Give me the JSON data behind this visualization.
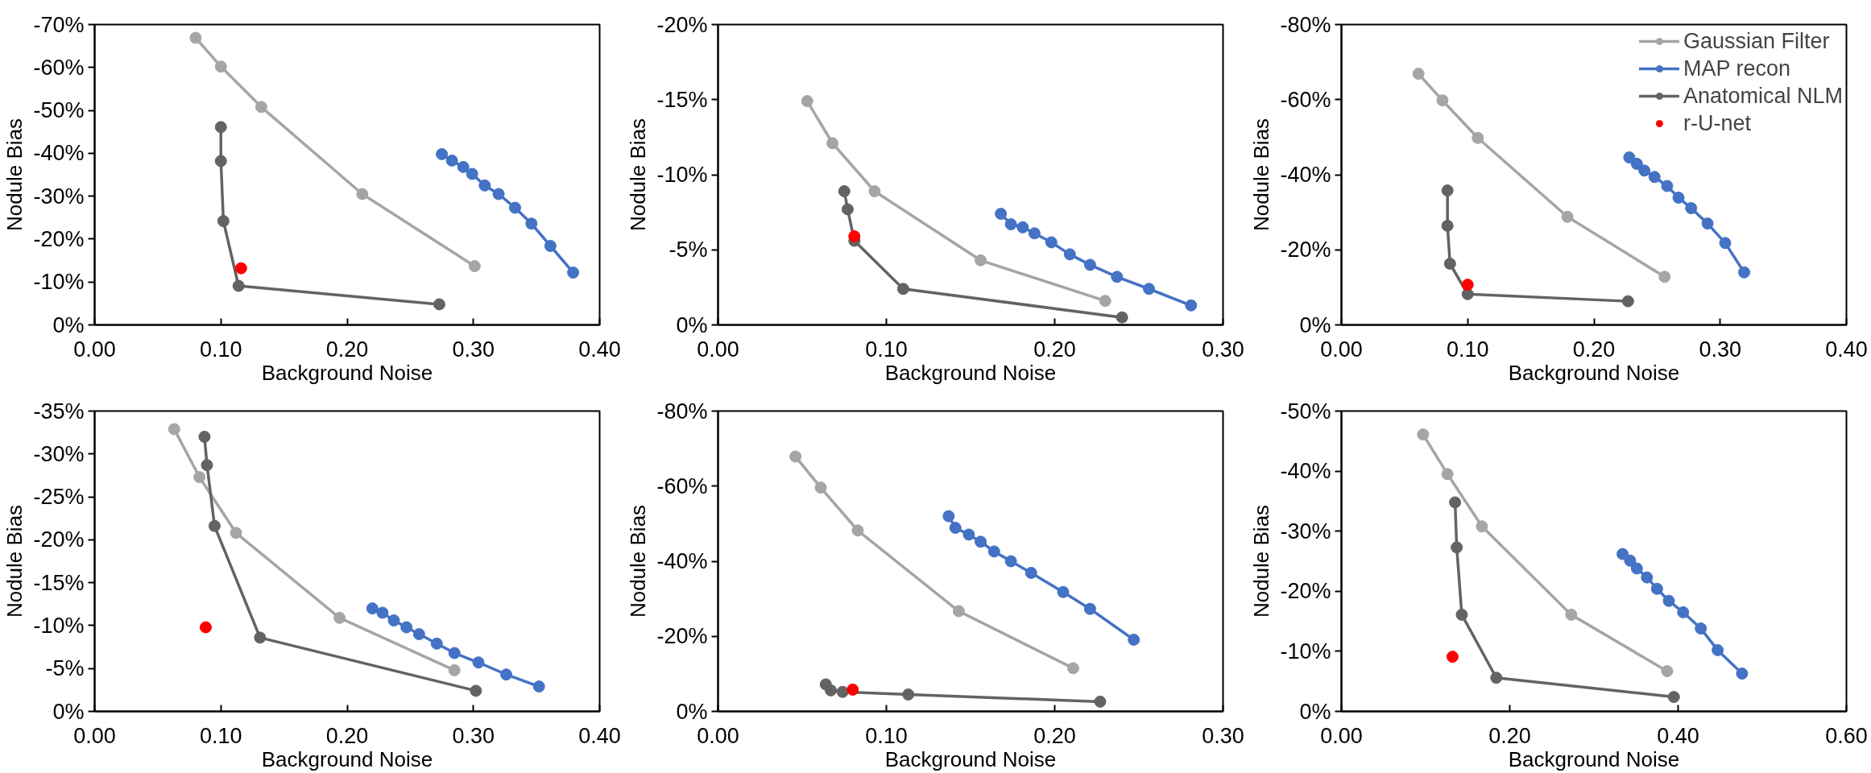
{
  "chart_data": [
    {
      "type": "line",
      "xlabel": "Background Noise",
      "ylabel": "Nodule Bias",
      "marker": "circle",
      "xlim": [
        0,
        0.4
      ],
      "ylim": [
        0,
        -70
      ],
      "xticks": [
        {
          "value": 0,
          "label": "0.00"
        },
        {
          "value": 0.1,
          "label": "0.10"
        },
        {
          "value": 0.2,
          "label": "0.20"
        },
        {
          "value": 0.3,
          "label": "0.30"
        },
        {
          "value": 0.4,
          "label": "0.40"
        }
      ],
      "yticks": [
        {
          "value": 0,
          "label": "0%"
        },
        {
          "value": -10,
          "label": "-10%"
        },
        {
          "value": -20,
          "label": "-20%"
        },
        {
          "value": -30,
          "label": "-30%"
        },
        {
          "value": -40,
          "label": "-40%"
        },
        {
          "value": -50,
          "label": "-50%"
        },
        {
          "value": -60,
          "label": "-60%"
        },
        {
          "value": -70,
          "label": "-70%"
        }
      ],
      "series": [
        {
          "color": "#a5a5a5",
          "x": [
            0.08,
            0.1,
            0.132,
            0.212,
            0.301
          ],
          "values": [
            -66.9,
            -60.2,
            -50.8,
            -30.5,
            -13.7
          ]
        },
        {
          "color": "#4472c4",
          "x": [
            0.275,
            0.283,
            0.292,
            0.299,
            0.309,
            0.32,
            0.333,
            0.346,
            0.361,
            0.379
          ],
          "values": [
            -39.8,
            -38.3,
            -36.8,
            -35.2,
            -32.5,
            -30.5,
            -27.3,
            -23.6,
            -18.4,
            -12.2
          ]
        },
        {
          "color": "#636363",
          "x": [
            0.1,
            0.1,
            0.102,
            0.114,
            0.273
          ],
          "values": [
            -46.1,
            -38.2,
            -24.2,
            -9.1,
            -4.8
          ]
        },
        {
          "color": "#ff0000",
          "x": [
            0.116
          ],
          "values": [
            -13.2
          ]
        }
      ]
    },
    {
      "type": "line",
      "xlabel": "Background Noise",
      "ylabel": "Nodule Bias",
      "marker": "circle",
      "xlim": [
        0,
        0.3
      ],
      "ylim": [
        0,
        -20
      ],
      "xticks": [
        {
          "value": 0,
          "label": "0.00"
        },
        {
          "value": 0.1,
          "label": "0.10"
        },
        {
          "value": 0.2,
          "label": "0.20"
        },
        {
          "value": 0.3,
          "label": "0.30"
        }
      ],
      "yticks": [
        {
          "value": 0,
          "label": "0%"
        },
        {
          "value": -5,
          "label": "-5%"
        },
        {
          "value": -10,
          "label": "-10%"
        },
        {
          "value": -15,
          "label": "-15%"
        },
        {
          "value": -20,
          "label": "-20%"
        }
      ],
      "series": [
        {
          "color": "#a5a5a5",
          "x": [
            0.053,
            0.068,
            0.093,
            0.156,
            0.23
          ],
          "values": [
            -14.9,
            -12.1,
            -8.9,
            -4.3,
            -1.6
          ]
        },
        {
          "color": "#4472c4",
          "x": [
            0.168,
            0.174,
            0.181,
            0.188,
            0.198,
            0.209,
            0.221,
            0.237,
            0.256,
            0.281
          ],
          "values": [
            -7.4,
            -6.7,
            -6.5,
            -6.1,
            -5.5,
            -4.7,
            -4.0,
            -3.2,
            -2.4,
            -1.3
          ]
        },
        {
          "color": "#636363",
          "x": [
            0.075,
            0.077,
            0.081,
            0.11,
            0.24
          ],
          "values": [
            -8.9,
            -7.7,
            -5.6,
            -2.4,
            -0.5
          ]
        },
        {
          "color": "#ff0000",
          "x": [
            0.081
          ],
          "values": [
            -5.9
          ]
        }
      ]
    },
    {
      "type": "line",
      "xlabel": "Background Noise",
      "ylabel": "Nodule Bias",
      "marker": "circle",
      "legend": "top right",
      "xlim": [
        0,
        0.4
      ],
      "ylim": [
        0,
        -80
      ],
      "xticks": [
        {
          "value": 0,
          "label": "0.00"
        },
        {
          "value": 0.1,
          "label": "0.10"
        },
        {
          "value": 0.2,
          "label": "0.20"
        },
        {
          "value": 0.3,
          "label": "0.30"
        },
        {
          "value": 0.4,
          "label": "0.40"
        }
      ],
      "yticks": [
        {
          "value": 0,
          "label": "0%"
        },
        {
          "value": -20,
          "label": "-20%"
        },
        {
          "value": -40,
          "label": "-40%"
        },
        {
          "value": -60,
          "label": "-60%"
        },
        {
          "value": -80,
          "label": "-80%"
        }
      ],
      "series": [
        {
          "name": "Gaussian Filter",
          "color": "#a5a5a5",
          "x": [
            0.061,
            0.08,
            0.108,
            0.179,
            0.256
          ],
          "values": [
            -66.9,
            -59.8,
            -49.8,
            -28.8,
            -12.8
          ]
        },
        {
          "name": "MAP recon",
          "color": "#4472c4",
          "x": [
            0.228,
            0.234,
            0.24,
            0.248,
            0.258,
            0.267,
            0.277,
            0.29,
            0.304,
            0.319
          ],
          "values": [
            -44.6,
            -42.9,
            -41.1,
            -39.4,
            -37.0,
            -33.9,
            -31.1,
            -27.0,
            -21.8,
            -14.0
          ]
        },
        {
          "name": "Anatomical NLM",
          "color": "#636363",
          "x": [
            0.084,
            0.084,
            0.086,
            0.1,
            0.227
          ],
          "values": [
            -35.8,
            -26.4,
            -16.3,
            -8.2,
            -6.3
          ]
        },
        {
          "name": "r-U-net",
          "color": "#ff0000",
          "x": [
            0.1
          ],
          "values": [
            -10.7
          ]
        }
      ]
    },
    {
      "type": "line",
      "xlabel": "Background Noise",
      "ylabel": "Nodule Bias",
      "marker": "circle",
      "xlim": [
        0,
        0.4
      ],
      "ylim": [
        0,
        -35
      ],
      "xticks": [
        {
          "value": 0,
          "label": "0.00"
        },
        {
          "value": 0.1,
          "label": "0.10"
        },
        {
          "value": 0.2,
          "label": "0.20"
        },
        {
          "value": 0.3,
          "label": "0.30"
        },
        {
          "value": 0.4,
          "label": "0.40"
        }
      ],
      "yticks": [
        {
          "value": 0,
          "label": "0%"
        },
        {
          "value": -5,
          "label": "-5%"
        },
        {
          "value": -10,
          "label": "-10%"
        },
        {
          "value": -15,
          "label": "-15%"
        },
        {
          "value": -20,
          "label": "-20%"
        },
        {
          "value": -25,
          "label": "-25%"
        },
        {
          "value": -30,
          "label": "-30%"
        },
        {
          "value": -35,
          "label": "-35%"
        }
      ],
      "series": [
        {
          "color": "#a5a5a5",
          "x": [
            0.063,
            0.083,
            0.112,
            0.194,
            0.285
          ],
          "values": [
            -32.9,
            -27.3,
            -20.8,
            -10.9,
            -4.8
          ]
        },
        {
          "color": "#4472c4",
          "x": [
            0.22,
            0.228,
            0.237,
            0.247,
            0.257,
            0.271,
            0.285,
            0.304,
            0.326,
            0.352
          ],
          "values": [
            -12.0,
            -11.5,
            -10.6,
            -9.8,
            -9.0,
            -7.9,
            -6.8,
            -5.7,
            -4.3,
            -2.9
          ]
        },
        {
          "color": "#636363",
          "x": [
            0.087,
            0.089,
            0.095,
            0.131,
            0.302
          ],
          "values": [
            -32.0,
            -28.7,
            -21.6,
            -8.6,
            -2.4
          ]
        },
        {
          "color": "#ff0000",
          "x": [
            0.088
          ],
          "values": [
            -9.8
          ]
        }
      ]
    },
    {
      "type": "line",
      "xlabel": "Background Noise",
      "ylabel": "Nodule Bias",
      "marker": "circle",
      "xlim": [
        0,
        0.3
      ],
      "ylim": [
        0,
        -80
      ],
      "xticks": [
        {
          "value": 0,
          "label": "0.00"
        },
        {
          "value": 0.1,
          "label": "0.10"
        },
        {
          "value": 0.2,
          "label": "0.20"
        },
        {
          "value": 0.3,
          "label": "0.30"
        }
      ],
      "yticks": [
        {
          "value": 0,
          "label": "0%"
        },
        {
          "value": -20,
          "label": "-20%"
        },
        {
          "value": -40,
          "label": "-40%"
        },
        {
          "value": -60,
          "label": "-60%"
        },
        {
          "value": -80,
          "label": "-80%"
        }
      ],
      "series": [
        {
          "color": "#a5a5a5",
          "x": [
            0.046,
            0.061,
            0.083,
            0.143,
            0.211
          ],
          "values": [
            -67.9,
            -59.6,
            -48.2,
            -26.7,
            -11.5
          ]
        },
        {
          "color": "#4472c4",
          "x": [
            0.137,
            0.141,
            0.149,
            0.156,
            0.164,
            0.174,
            0.186,
            0.205,
            0.221,
            0.247
          ],
          "values": [
            -52.0,
            -48.9,
            -47.1,
            -45.2,
            -42.6,
            -40.0,
            -36.9,
            -31.8,
            -27.3,
            -19.1
          ]
        },
        {
          "color": "#636363",
          "x": [
            0.064,
            0.067,
            0.074,
            0.113,
            0.227
          ],
          "values": [
            -7.2,
            -5.6,
            -5.2,
            -4.5,
            -2.6
          ]
        },
        {
          "color": "#ff0000",
          "x": [
            0.08
          ],
          "values": [
            -5.8
          ]
        }
      ]
    },
    {
      "type": "line",
      "xlabel": "Background Noise",
      "ylabel": "Nodule Bias",
      "marker": "circle",
      "xlim": [
        0,
        0.6
      ],
      "ylim": [
        0,
        -50
      ],
      "xticks": [
        {
          "value": 0,
          "label": "0.00"
        },
        {
          "value": 0.2,
          "label": "0.20"
        },
        {
          "value": 0.4,
          "label": "0.40"
        },
        {
          "value": 0.6,
          "label": "0.60"
        }
      ],
      "yticks": [
        {
          "value": 0,
          "label": "0%"
        },
        {
          "value": -10,
          "label": "-10%"
        },
        {
          "value": -20,
          "label": "-20%"
        },
        {
          "value": -30,
          "label": "-30%"
        },
        {
          "value": -40,
          "label": "-40%"
        },
        {
          "value": -50,
          "label": "-50%"
        }
      ],
      "series": [
        {
          "color": "#a5a5a5",
          "x": [
            0.097,
            0.126,
            0.167,
            0.273,
            0.387
          ],
          "values": [
            -46.1,
            -39.5,
            -30.8,
            -16.1,
            -6.7
          ]
        },
        {
          "color": "#4472c4",
          "x": [
            0.334,
            0.343,
            0.351,
            0.363,
            0.375,
            0.389,
            0.406,
            0.427,
            0.447,
            0.476
          ],
          "values": [
            -26.2,
            -25.1,
            -23.8,
            -22.3,
            -20.4,
            -18.4,
            -16.5,
            -13.8,
            -10.2,
            -6.3
          ]
        },
        {
          "color": "#636363",
          "x": [
            0.135,
            0.137,
            0.143,
            0.184,
            0.395
          ],
          "values": [
            -34.8,
            -27.3,
            -16.1,
            -5.6,
            -2.4
          ]
        },
        {
          "color": "#ff0000",
          "x": [
            0.132
          ],
          "values": [
            -9.1
          ]
        }
      ]
    }
  ]
}
